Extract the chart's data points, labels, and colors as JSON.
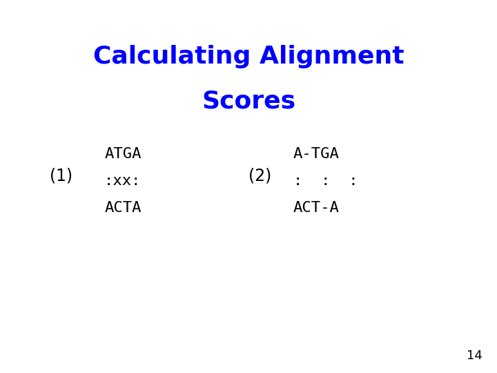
{
  "title_line1": "Calculating Alignment",
  "title_line2": "Scores",
  "title_color": "#0000FF",
  "title_fontsize": 26,
  "title_fontweight": "bold",
  "background_color": "#FFFFFF",
  "label1": "(1)",
  "label2": "(2)",
  "alignment1_line1": "ATGA",
  "alignment1_line2": ":xx:",
  "alignment1_line3": "ACTA",
  "alignment2_line1": "A-TGA",
  "alignment2_line2": ":  :  :",
  "alignment2_line3": "ACT-A",
  "text_color": "#000000",
  "mono_fontsize": 16,
  "label_fontsize": 17,
  "page_number": "14",
  "page_number_fontsize": 13
}
